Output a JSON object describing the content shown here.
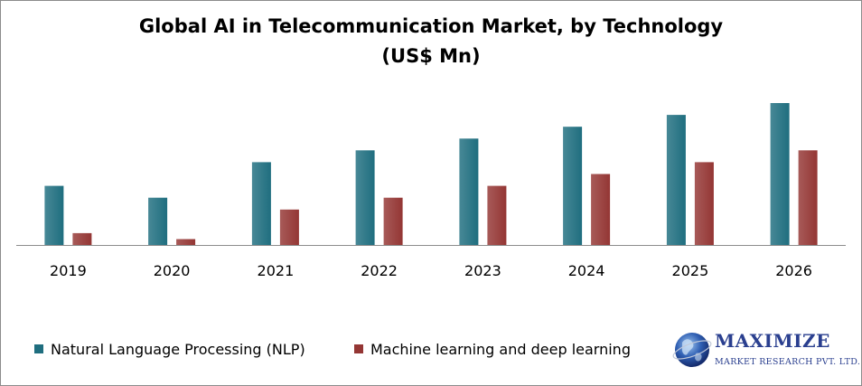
{
  "colors": {
    "nlp": "#1f6e7f",
    "ml": "#943634",
    "axis": "#8c8c8c",
    "brand": "#2a3f8f"
  },
  "logo": {
    "name": "MAXIMIZE",
    "subtitle": "MARKET RESEARCH PVT. LTD.",
    "icon": "globe-icon"
  },
  "chart_data": {
    "type": "bar",
    "title": "Global AI in Telecommunication Market, by Technology",
    "subtitle": "(US$ Mn)",
    "categories": [
      "2019",
      "2020",
      "2021",
      "2022",
      "2023",
      "2024",
      "2025",
      "2026"
    ],
    "series": [
      {
        "name": "Natural Language Processing (NLP)",
        "values": [
          25,
          20,
          35,
          40,
          45,
          50,
          55,
          60
        ]
      },
      {
        "name": "Machine learning and deep learning",
        "values": [
          5,
          2.5,
          15,
          20,
          25,
          30,
          35,
          40
        ]
      }
    ],
    "xlabel": "",
    "ylabel": "",
    "ylim": [
      0,
      60
    ],
    "grid": false,
    "legend": "bottom-left"
  }
}
